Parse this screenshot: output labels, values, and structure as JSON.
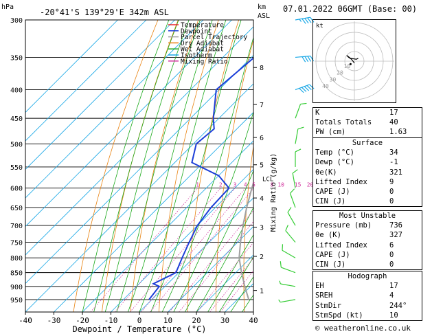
{
  "header": {
    "pressure_unit": "hPa",
    "location": "-20°41'S  139°29'E  342m  ASL",
    "height_unit": "km",
    "height_ref": "ASL",
    "datetime": "07.01.2022  06GMT  (Base: 00)"
  },
  "legend": [
    {
      "label": "Temperature",
      "color": "#e8262a"
    },
    {
      "label": "Dewpoint",
      "color": "#1c3ed8"
    },
    {
      "label": "Parcel Trajectory",
      "color": "#a0a0a0"
    },
    {
      "label": "Dry Adiabat",
      "color": "#e8820f"
    },
    {
      "label": "Wet Adiabat",
      "color": "#18a818"
    },
    {
      "label": "Isotherm",
      "color": "#1aa8e6"
    },
    {
      "label": "Mixing Ratio",
      "color": "#d0309c"
    }
  ],
  "chart_data": {
    "type": "line",
    "xlabel": "Dewpoint / Temperature (°C)",
    "ylabel": "hPa",
    "xlim": [
      -40,
      40
    ],
    "ylim": [
      300,
      1000
    ],
    "yscale": "log",
    "x_ticks": [
      -40,
      -30,
      -20,
      -10,
      0,
      10,
      20,
      30,
      40
    ],
    "pressure_ticks": [
      300,
      350,
      400,
      450,
      500,
      550,
      600,
      650,
      700,
      750,
      800,
      850,
      900,
      950
    ],
    "height_ticks": [
      {
        "km": "1",
        "p": 915
      },
      {
        "km": "2",
        "p": 795
      },
      {
        "km": "3",
        "p": 705
      },
      {
        "km": "4",
        "p": 625
      },
      {
        "km": "5",
        "p": 545
      },
      {
        "km": "6",
        "p": 487
      },
      {
        "km": "7",
        "p": 425
      },
      {
        "km": "8",
        "p": 365
      }
    ],
    "lcl": {
      "label": "LCL",
      "p": 578
    },
    "mixing_ratio_label": "Mixing Ratio (g/kg)",
    "mixing_ratios": [
      {
        "label": "1",
        "w": 1
      },
      {
        "label": "2",
        "w": 2
      },
      {
        "label": "3",
        "w": 3
      },
      {
        "label": "4",
        "w": 4
      },
      {
        "label": "5",
        "w": 5
      },
      {
        "label": "8",
        "w": 8
      },
      {
        "label": "10",
        "w": 10
      },
      {
        "label": "15",
        "w": 15
      },
      {
        "label": "20",
        "w": 20
      },
      {
        "label": "25",
        "w": 25
      }
    ],
    "series": [
      {
        "name": "Temperature",
        "points": [
          [
            950,
            37
          ],
          [
            920,
            33
          ],
          [
            850,
            28
          ],
          [
            800,
            24
          ],
          [
            750,
            19
          ],
          [
            700,
            14
          ],
          [
            650,
            9
          ],
          [
            600,
            3.5
          ],
          [
            585,
            4
          ],
          [
            570,
            2
          ],
          [
            550,
            0
          ],
          [
            500,
            -6
          ],
          [
            450,
            -13.5
          ],
          [
            400,
            -20
          ],
          [
            350,
            -27
          ],
          [
            320,
            -32
          ]
        ]
      },
      {
        "name": "Dewpoint",
        "points": [
          [
            950,
            -1
          ],
          [
            900,
            -2
          ],
          [
            890,
            -5
          ],
          [
            850,
            -1
          ],
          [
            800,
            -4
          ],
          [
            750,
            -7
          ],
          [
            700,
            -10
          ],
          [
            650,
            -11.5
          ],
          [
            600,
            -12
          ],
          [
            570,
            -20
          ],
          [
            540,
            -34
          ],
          [
            500,
            -39
          ],
          [
            470,
            -38
          ],
          [
            450,
            -42
          ],
          [
            400,
            -51
          ],
          [
            350,
            -49
          ],
          [
            300,
            -48
          ]
        ]
      },
      {
        "name": "Parcel Trajectory",
        "points": [
          [
            950,
            34
          ],
          [
            900,
            28
          ],
          [
            850,
            22
          ],
          [
            800,
            16
          ],
          [
            750,
            11
          ],
          [
            700,
            6
          ],
          [
            650,
            1
          ],
          [
            600,
            -4
          ],
          [
            580,
            -6
          ],
          [
            550,
            -9
          ],
          [
            500,
            -14.5
          ],
          [
            450,
            -21
          ],
          [
            400,
            -28.5
          ],
          [
            350,
            -37
          ],
          [
            300,
            -46
          ]
        ]
      }
    ],
    "wind_barbs": [
      {
        "p": 300,
        "dir": 260,
        "spd": 45
      },
      {
        "p": 350,
        "dir": 265,
        "spd": 40
      },
      {
        "p": 400,
        "dir": 250,
        "spd": 50
      },
      {
        "p": 450,
        "dir": 200,
        "spd": 10
      },
      {
        "p": 500,
        "dir": 190,
        "spd": 10
      },
      {
        "p": 550,
        "dir": 180,
        "spd": 10
      },
      {
        "p": 600,
        "dir": 170,
        "spd": 10
      },
      {
        "p": 650,
        "dir": 160,
        "spd": 10
      },
      {
        "p": 700,
        "dir": 150,
        "spd": 10
      },
      {
        "p": 750,
        "dir": 140,
        "spd": 10
      },
      {
        "p": 800,
        "dir": 120,
        "spd": 10
      },
      {
        "p": 850,
        "dir": 110,
        "spd": 10
      },
      {
        "p": 900,
        "dir": 100,
        "spd": 5
      },
      {
        "p": 950,
        "dir": 80,
        "spd": 5
      }
    ]
  },
  "hodograph": {
    "unit": "kt",
    "ring_labels": [
      "10",
      "20",
      "30",
      "40"
    ],
    "trace_kt": [
      [
        0,
        -2
      ],
      [
        -3,
        2
      ],
      [
        -6,
        4
      ],
      [
        -8,
        6
      ],
      [
        -4,
        3
      ],
      [
        2,
        2
      ],
      [
        4,
        3
      ]
    ],
    "storm_motion_kt": [
      -4,
      -3
    ]
  },
  "indices": [
    {
      "label": "K",
      "value": "17"
    },
    {
      "label": "Totals Totals",
      "value": "40"
    },
    {
      "label": "PW (cm)",
      "value": "1.63"
    }
  ],
  "surface": {
    "title": "Surface",
    "rows": [
      {
        "label": "Temp (°C)",
        "value": "34"
      },
      {
        "label": "Dewp (°C)",
        "value": "-1"
      },
      {
        "label": "θe(K)",
        "value": "321"
      },
      {
        "label": "Lifted Index",
        "value": "9"
      },
      {
        "label": "CAPE (J)",
        "value": "0"
      },
      {
        "label": "CIN (J)",
        "value": "0"
      }
    ]
  },
  "most_unstable": {
    "title": "Most Unstable",
    "rows": [
      {
        "label": "Pressure (mb)",
        "value": "736"
      },
      {
        "label": "θe (K)",
        "value": "327"
      },
      {
        "label": "Lifted Index",
        "value": "6"
      },
      {
        "label": "CAPE (J)",
        "value": "0"
      },
      {
        "label": "CIN (J)",
        "value": "0"
      }
    ]
  },
  "hodograph_table": {
    "title": "Hodograph",
    "rows": [
      {
        "label": "EH",
        "value": "17"
      },
      {
        "label": "SREH",
        "value": "4"
      },
      {
        "label": "StmDir",
        "value": "244°"
      },
      {
        "label": "StmSpd (kt)",
        "value": "10"
      }
    ]
  },
  "footer": {
    "copyright": "© weatheronline.co.uk"
  }
}
